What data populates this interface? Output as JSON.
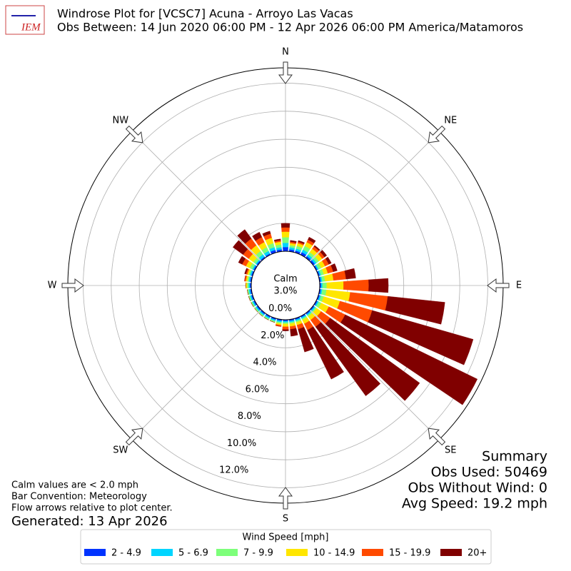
{
  "chart_data": {
    "type": "windrose",
    "title": "Windrose Plot for [VCSC7] Acuna - Arroyo Las Vacas",
    "subtitle": "Obs Between: 14 Jun 2020 06:00 PM - 12 Apr 2026 06:00 PM America/Matamoros",
    "logo": "IEM",
    "directions": [
      0,
      10,
      20,
      30,
      40,
      50,
      60,
      70,
      80,
      90,
      100,
      110,
      120,
      130,
      140,
      150,
      160,
      170,
      180,
      190,
      200,
      210,
      220,
      230,
      240,
      250,
      260,
      270,
      280,
      290,
      300,
      310,
      320,
      330,
      340,
      350
    ],
    "compass": [
      "N",
      "NE",
      "E",
      "SE",
      "S",
      "SW",
      "W",
      "NW"
    ],
    "ylim": [
      0,
      13.1
    ],
    "yticks": [
      {
        "value": 0,
        "label": "0.0%"
      },
      {
        "value": 2,
        "label": "2.0%"
      },
      {
        "value": 4,
        "label": "4.0%"
      },
      {
        "value": 6,
        "label": "6.0%"
      },
      {
        "value": 8,
        "label": "8.0%"
      },
      {
        "value": 10,
        "label": "10.0%"
      },
      {
        "value": 12,
        "label": "12.0%"
      }
    ],
    "grid": true,
    "calm": {
      "label": "Calm",
      "value": 3.0,
      "value_label": "3.0%"
    },
    "legend_title": "Wind Speed [mph]",
    "series": [
      {
        "name": "2 - 4.9",
        "color": "#0033ff",
        "values": [
          0.3,
          0.15,
          0.15,
          0.2,
          0.15,
          0.15,
          0.1,
          0.1,
          0.1,
          0.1,
          0.1,
          0.1,
          0.1,
          0.1,
          0.1,
          0.1,
          0.1,
          0.1,
          0.1,
          0.1,
          0.1,
          0.1,
          0.1,
          0.1,
          0.1,
          0.1,
          0.1,
          0.1,
          0.1,
          0.1,
          0.1,
          0.1,
          0.1,
          0.1,
          0.2,
          0.15
        ]
      },
      {
        "name": "5 - 6.9",
        "color": "#00d5ff",
        "values": [
          0.3,
          0.15,
          0.15,
          0.2,
          0.15,
          0.15,
          0.1,
          0.1,
          0.1,
          0.1,
          0.1,
          0.1,
          0.1,
          0.1,
          0.1,
          0.1,
          0.1,
          0.1,
          0.1,
          0.1,
          0.1,
          0.1,
          0.1,
          0.1,
          0.1,
          0.1,
          0.1,
          0.1,
          0.1,
          0.1,
          0.1,
          0.1,
          0.2,
          0.2,
          0.2,
          0.15
        ]
      },
      {
        "name": "7 - 9.9",
        "color": "#7dff7a",
        "values": [
          0.4,
          0.15,
          0.2,
          0.3,
          0.2,
          0.2,
          0.2,
          0.2,
          0.2,
          0.3,
          0.3,
          0.2,
          0.2,
          0.1,
          0.1,
          0.1,
          0.1,
          0.1,
          0.1,
          0.1,
          0.1,
          0.1,
          0.1,
          0.1,
          0.1,
          0.1,
          0.1,
          0.1,
          0.1,
          0.1,
          0.2,
          0.2,
          0.3,
          0.3,
          0.3,
          0.2
        ]
      },
      {
        "name": "10 - 14.9",
        "color": "#ffe600",
        "values": [
          0.4,
          0.15,
          0.2,
          0.3,
          0.3,
          0.3,
          0.3,
          0.3,
          0.6,
          1.2,
          1.7,
          1.2,
          0.6,
          0.4,
          0.3,
          0.3,
          0.2,
          0.2,
          0.2,
          0.1,
          0,
          0,
          0,
          0,
          0,
          0,
          0,
          0.1,
          0.1,
          0.1,
          0.3,
          0.4,
          0.5,
          0.4,
          0.4,
          0.2
        ]
      },
      {
        "name": "15 - 19.9",
        "color": "#ff4a00",
        "values": [
          0.3,
          0.1,
          0.1,
          0.2,
          0.2,
          0.2,
          0.3,
          0.4,
          0.9,
          1.8,
          2.7,
          2.4,
          1.3,
          0.8,
          0.6,
          0.5,
          0.3,
          0.2,
          0.2,
          0.1,
          0,
          0,
          0,
          0,
          0,
          0,
          0,
          0,
          0.1,
          0.1,
          0.3,
          0.5,
          0.6,
          0.4,
          0.3,
          0.1
        ]
      },
      {
        "name": "20+",
        "color": "#800000",
        "values": [
          0.3,
          0.1,
          0.1,
          0.2,
          0.1,
          0.2,
          0.2,
          0.3,
          0.7,
          1.4,
          4.1,
          7.5,
          10.5,
          7.9,
          6.1,
          3.9,
          1.7,
          0.5,
          0.1,
          0,
          0,
          0,
          0,
          0,
          0,
          0,
          0,
          0,
          0,
          0.1,
          0.3,
          0.9,
          0.8,
          0.4,
          0.2,
          0.1
        ]
      }
    ],
    "notes": [
      "Calm values are < 2.0 mph",
      "Bar Convention: Meteorology",
      "Flow arrows relative to plot center."
    ],
    "generated": "Generated: 13 Apr 2026",
    "summary": {
      "title": "Summary",
      "lines": [
        "Obs Used: 50469",
        "Obs Without Wind: 0",
        "Avg Speed: 19.2 mph"
      ]
    }
  }
}
